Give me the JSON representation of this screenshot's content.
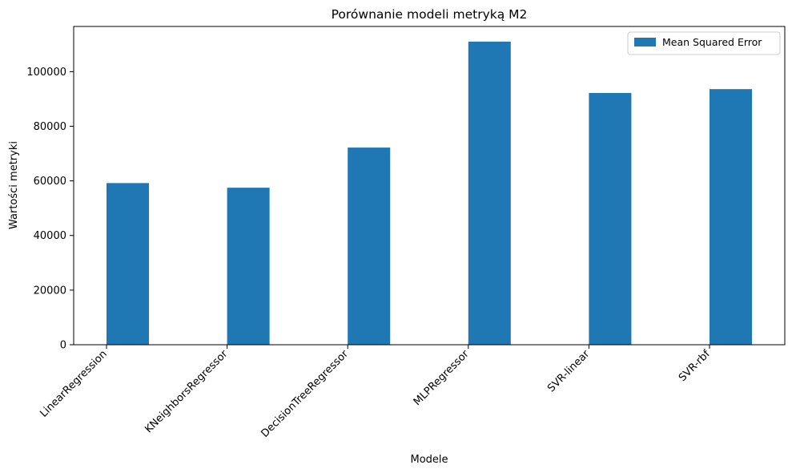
{
  "chart_data": {
    "type": "bar",
    "title": "Porównanie modeli metryką M2",
    "xlabel": "Modele",
    "ylabel": "Wartości metryki",
    "categories": [
      "LinearRegression",
      "KNeighborsRegressor",
      "DecisionTreeRegressor",
      "MLPRegressor",
      "SVR-linear",
      "SVR-rbf"
    ],
    "series": [
      {
        "name": "Mean Squared Error",
        "color": "#1f77b4",
        "values": [
          59200,
          57500,
          72200,
          111000,
          92200,
          93600
        ]
      }
    ],
    "ylim": [
      0,
      116550
    ],
    "yticks": [
      0,
      20000,
      40000,
      60000,
      80000,
      100000
    ],
    "ytick_labels": [
      "0",
      "20000",
      "40000",
      "60000",
      "80000",
      "100000"
    ],
    "grid": false,
    "legend_position": "top-right"
  }
}
